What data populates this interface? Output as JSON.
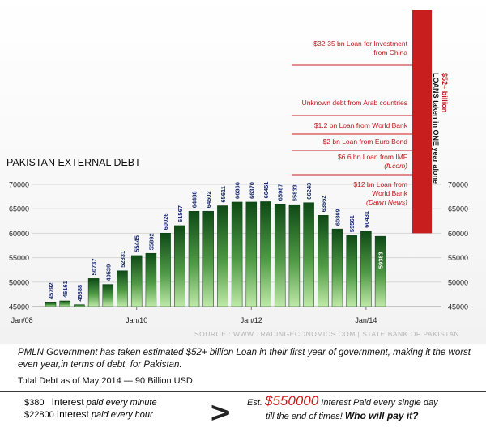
{
  "chart_data": {
    "type": "bar",
    "title": "PAKISTAN EXTERNAL DEBT",
    "source": "SOURCE : WWW.TRADINGECONOMICS.COM | STATE BANK OF PAKISTAN",
    "x_ticks": [
      "Jan/08",
      "Jan/10",
      "Jan/12",
      "Jan/14"
    ],
    "y_ticks": [
      "45000",
      "50000",
      "55000",
      "60000",
      "65000",
      "70000"
    ],
    "ylim": [
      45000,
      70000
    ],
    "grid": true,
    "values": [
      45792,
      46161,
      45388,
      50737,
      49539,
      52331,
      55445,
      55892,
      60026,
      61567,
      64488,
      64502,
      65611,
      66366,
      66370,
      66451,
      65987,
      65833,
      66243,
      63662,
      60869,
      59561,
      60431,
      59383
    ],
    "bar_colors": {
      "bar_dark": "#0e4a16",
      "bar_light": "#bfe9a8",
      "highlight": "#c81e1e",
      "note_text": "#c0181c"
    },
    "annotations": [
      {
        "label": "$32-35 bn Loan for Investment from China",
        "lines": [
          "$32-35 bn Loan for Investment",
          "from China"
        ]
      },
      {
        "label": "Unknown debt from Arab countries",
        "lines": [
          "Unknown debt from Arab countries"
        ]
      },
      {
        "label": "$1.2 bn Loan from World Bank",
        "lines": [
          "$1.2 bn Loan from World Bank"
        ]
      },
      {
        "label": "$2 bn Loan from Euro Bond",
        "lines": [
          "$2 bn Loan from Euro Bond"
        ]
      },
      {
        "label": "$6.6 bn Loan from IMF (ft.com)",
        "lines": [
          "$6.6 bn Loan from IMF",
          "(ft.com)"
        ]
      },
      {
        "label": "$12 bn Loan from World Bank (Dawn News)",
        "lines": [
          "$12 bn Loan from",
          "World Bank",
          "(Dawn News)"
        ]
      }
    ],
    "vertical_note": [
      "$52+ billion",
      "LOANS taken in ONE year alone"
    ]
  },
  "caption": "PMLN Government has taken estimated $52+ billion Loan in their first year of government, making it the worst even year,in terms of debt, for Pakistan.",
  "total_debt": {
    "label": "Total Debt as of May 2014",
    "dash": "—",
    "value": "90 Billion USD"
  },
  "footer": {
    "minute_amount": "$380",
    "minute_label": "Interest",
    "minute_text": "paid every minute",
    "hour_amount": "$22800",
    "hour_label": "Interest",
    "hour_text": "paid every hour",
    "arrow": ">",
    "est_prefix": "Est.",
    "est_amount": "$550000",
    "est_text": "Interest Paid every single day",
    "till_text": "till the end of times!",
    "question": "Who will pay it?"
  }
}
